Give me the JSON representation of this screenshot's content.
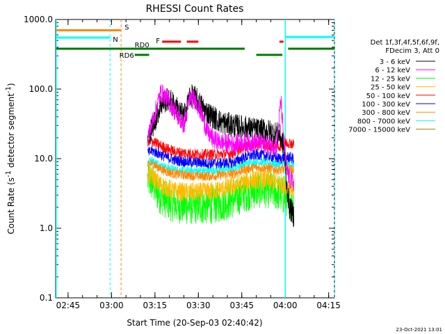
{
  "chart_data": {
    "type": "line",
    "title": "RHESSI Count Rates",
    "xlabel": "Start Time (20-Sep-03 02:40:42)",
    "ylabel_main": "Count Rate (s",
    "ylabel_sup1": "-1",
    "ylabel_mid": " detector segment",
    "ylabel_sup2": "-1",
    "ylabel_end": ")",
    "x_start_min": 160.7,
    "x_end_min": 257,
    "ylim": [
      0.1,
      1000
    ],
    "y_scale": "log",
    "x_ticks": [
      {
        "min": 165,
        "label": "02:45"
      },
      {
        "min": 180,
        "label": "03:00"
      },
      {
        "min": 195,
        "label": "03:15"
      },
      {
        "min": 210,
        "label": "03:30"
      },
      {
        "min": 225,
        "label": "03:45"
      },
      {
        "min": 240,
        "label": "04:00"
      },
      {
        "min": 255,
        "label": "04:15"
      }
    ],
    "y_ticks": [
      {
        "v": 0.1,
        "label": "0.1"
      },
      {
        "v": 1,
        "label": "1.0"
      },
      {
        "v": 10,
        "label": "10.0"
      },
      {
        "v": 100,
        "label": "100.0"
      },
      {
        "v": 1000,
        "label": "1000.0"
      }
    ],
    "legend_header": [
      "Det 1f,3f,4f,5f,6f,9f,",
      "FDecim 3, Att 0"
    ],
    "legend_placement": "right",
    "series": [
      {
        "name": "3 - 6 keV",
        "color": "#000000",
        "base": [
          [
            192.5,
            20
          ],
          [
            195,
            35
          ],
          [
            197,
            60
          ],
          [
            199,
            70
          ],
          [
            201,
            65
          ],
          [
            203,
            50
          ],
          [
            205,
            40
          ],
          [
            206,
            55
          ],
          [
            207,
            80
          ],
          [
            209,
            75
          ],
          [
            212,
            50
          ],
          [
            215,
            40
          ],
          [
            218,
            33
          ],
          [
            222,
            30
          ],
          [
            226,
            28
          ],
          [
            230,
            26
          ],
          [
            234,
            25
          ],
          [
            238,
            22
          ],
          [
            239.5,
            16
          ],
          [
            240.5,
            4
          ],
          [
            241.5,
            2
          ],
          [
            243,
            1.5
          ]
        ],
        "noise": 0.35
      },
      {
        "name": "6 - 12 keV",
        "color": "#ff00ff",
        "base": [
          [
            192.5,
            20
          ],
          [
            195,
            45
          ],
          [
            197,
            90
          ],
          [
            199,
            75
          ],
          [
            201,
            55
          ],
          [
            203,
            40
          ],
          [
            205,
            30
          ],
          [
            206,
            45
          ],
          [
            207,
            75
          ],
          [
            209,
            70
          ],
          [
            211,
            45
          ],
          [
            213,
            25
          ],
          [
            215,
            19
          ],
          [
            218,
            17
          ],
          [
            222,
            16.5
          ],
          [
            226,
            17
          ],
          [
            230,
            17
          ],
          [
            234,
            16
          ],
          [
            237,
            15
          ],
          [
            238.5,
            70
          ],
          [
            239.5,
            18
          ],
          [
            240.5,
            7
          ],
          [
            241.5,
            5
          ],
          [
            243,
            4.5
          ]
        ],
        "noise": 0.28
      },
      {
        "name": "12 - 25 keV",
        "color": "#00ff00",
        "base": [
          [
            192.5,
            5
          ],
          [
            194,
            4.5
          ],
          [
            196,
            3.2
          ],
          [
            199,
            2.5
          ],
          [
            202,
            2.2
          ],
          [
            206,
            2.1
          ],
          [
            210,
            2.1
          ],
          [
            214,
            2.1
          ],
          [
            218,
            2.3
          ],
          [
            222,
            2.6
          ],
          [
            226,
            3.2
          ],
          [
            230,
            3.6
          ],
          [
            234,
            3.6
          ],
          [
            238,
            3.2
          ],
          [
            240,
            2.8
          ],
          [
            241.5,
            2.5
          ],
          [
            243,
            2.4
          ]
        ],
        "noise": 0.55
      },
      {
        "name": "25 - 50 keV",
        "color": "#ffbb00",
        "base": [
          [
            192.5,
            6
          ],
          [
            194,
            5.6
          ],
          [
            196,
            4.5
          ],
          [
            199,
            3.8
          ],
          [
            202,
            3.4
          ],
          [
            206,
            3.3
          ],
          [
            210,
            3.3
          ],
          [
            214,
            3.4
          ],
          [
            218,
            3.6
          ],
          [
            222,
            4
          ],
          [
            226,
            4.6
          ],
          [
            230,
            5
          ],
          [
            234,
            4.9
          ],
          [
            238,
            4.4
          ],
          [
            240,
            4.2
          ],
          [
            241.5,
            4
          ],
          [
            243,
            3.8
          ]
        ],
        "noise": 0.28
      },
      {
        "name": "50 - 100 keV",
        "color": "#ff0000",
        "base": [
          [
            192.5,
            16
          ],
          [
            194,
            18
          ],
          [
            196,
            16
          ],
          [
            199,
            14
          ],
          [
            202,
            12.5
          ],
          [
            206,
            12
          ],
          [
            210,
            11.5
          ],
          [
            214,
            11.5
          ],
          [
            218,
            11.5
          ],
          [
            222,
            12
          ],
          [
            226,
            15
          ],
          [
            230,
            16
          ],
          [
            234,
            15.5
          ],
          [
            238,
            15
          ],
          [
            240,
            17
          ],
          [
            241.5,
            17
          ],
          [
            243,
            16
          ]
        ],
        "noise": 0.16
      },
      {
        "name": "100 - 300 keV",
        "color": "#0000ff",
        "base": [
          [
            192.5,
            12
          ],
          [
            194,
            13
          ],
          [
            196,
            12
          ],
          [
            199,
            10.5
          ],
          [
            202,
            9.5
          ],
          [
            206,
            9
          ],
          [
            210,
            8.8
          ],
          [
            214,
            8.6
          ],
          [
            218,
            8.6
          ],
          [
            222,
            8.8
          ],
          [
            226,
            10.5
          ],
          [
            230,
            11.5
          ],
          [
            234,
            11
          ],
          [
            238,
            10
          ],
          [
            240,
            10.5
          ],
          [
            241.5,
            10.5
          ],
          [
            243,
            10
          ]
        ],
        "noise": 0.16
      },
      {
        "name": "300 - 800 keV",
        "color": "#ff8800",
        "base": [
          [
            192.5,
            8
          ],
          [
            194,
            8.5
          ],
          [
            196,
            7.5
          ],
          [
            199,
            6.5
          ],
          [
            202,
            6
          ],
          [
            206,
            5.8
          ],
          [
            210,
            5.6
          ],
          [
            214,
            5.6
          ],
          [
            218,
            5.8
          ],
          [
            222,
            6
          ],
          [
            226,
            7
          ],
          [
            230,
            7.5
          ],
          [
            234,
            7.3
          ],
          [
            238,
            6.8
          ],
          [
            240,
            7
          ],
          [
            241.5,
            7
          ],
          [
            243,
            6.8
          ]
        ],
        "noise": 0.14
      },
      {
        "name": "800 - 7000 keV",
        "color": "#00ffff",
        "base": [
          [
            192.5,
            9
          ],
          [
            194,
            9.5
          ],
          [
            196,
            8.5
          ],
          [
            199,
            7.5
          ],
          [
            202,
            7
          ],
          [
            206,
            6.8
          ],
          [
            210,
            6.7
          ],
          [
            214,
            6.7
          ],
          [
            218,
            6.9
          ],
          [
            222,
            7.2
          ],
          [
            226,
            8.5
          ],
          [
            230,
            9
          ],
          [
            234,
            8.8
          ],
          [
            238,
            8.2
          ],
          [
            240,
            8.4
          ],
          [
            241.5,
            8.4
          ],
          [
            243,
            8.1
          ]
        ],
        "noise": 0.12
      },
      {
        "name": "7000 - 15000 keV",
        "color": "#aa7700",
        "base": [],
        "noise": 0
      }
    ],
    "events": {
      "cyan_solid_lines": [
        160.9,
        240
      ],
      "cyan_dashed_lines": [
        179.5,
        257
      ],
      "orange_dashed_lines": [
        183.3
      ],
      "s_bar": {
        "label": "S",
        "from": 160.9,
        "to": 183.3,
        "value": 700,
        "color": "#ff8800"
      },
      "n_bars": [
        {
          "label": "N",
          "from": 160.9,
          "to": 179.5,
          "value": 550,
          "color": "#00ffff"
        },
        {
          "label": "",
          "from": 240,
          "to": 257,
          "value": 560,
          "color": "#00ffff"
        }
      ],
      "f_bars": [
        {
          "label": "F",
          "from": 197.5,
          "to": 204,
          "value": 480
        },
        {
          "label": "",
          "from": 206,
          "to": 210,
          "value": 480
        },
        {
          "label": "",
          "from": 238,
          "to": 239.4,
          "value": 480
        }
      ],
      "rd0_bars": [
        {
          "label": "RD0",
          "from": 160.9,
          "to": 226,
          "value": 380
        },
        {
          "label": "",
          "from": 241,
          "to": 257,
          "value": 380
        }
      ],
      "rd6_bars": [
        {
          "label": "RD6",
          "from": 188,
          "to": 193,
          "value": 310
        },
        {
          "label": "",
          "from": 230,
          "to": 239,
          "value": 310
        }
      ]
    },
    "timestamp": "23-Oct-2021 13:01"
  }
}
